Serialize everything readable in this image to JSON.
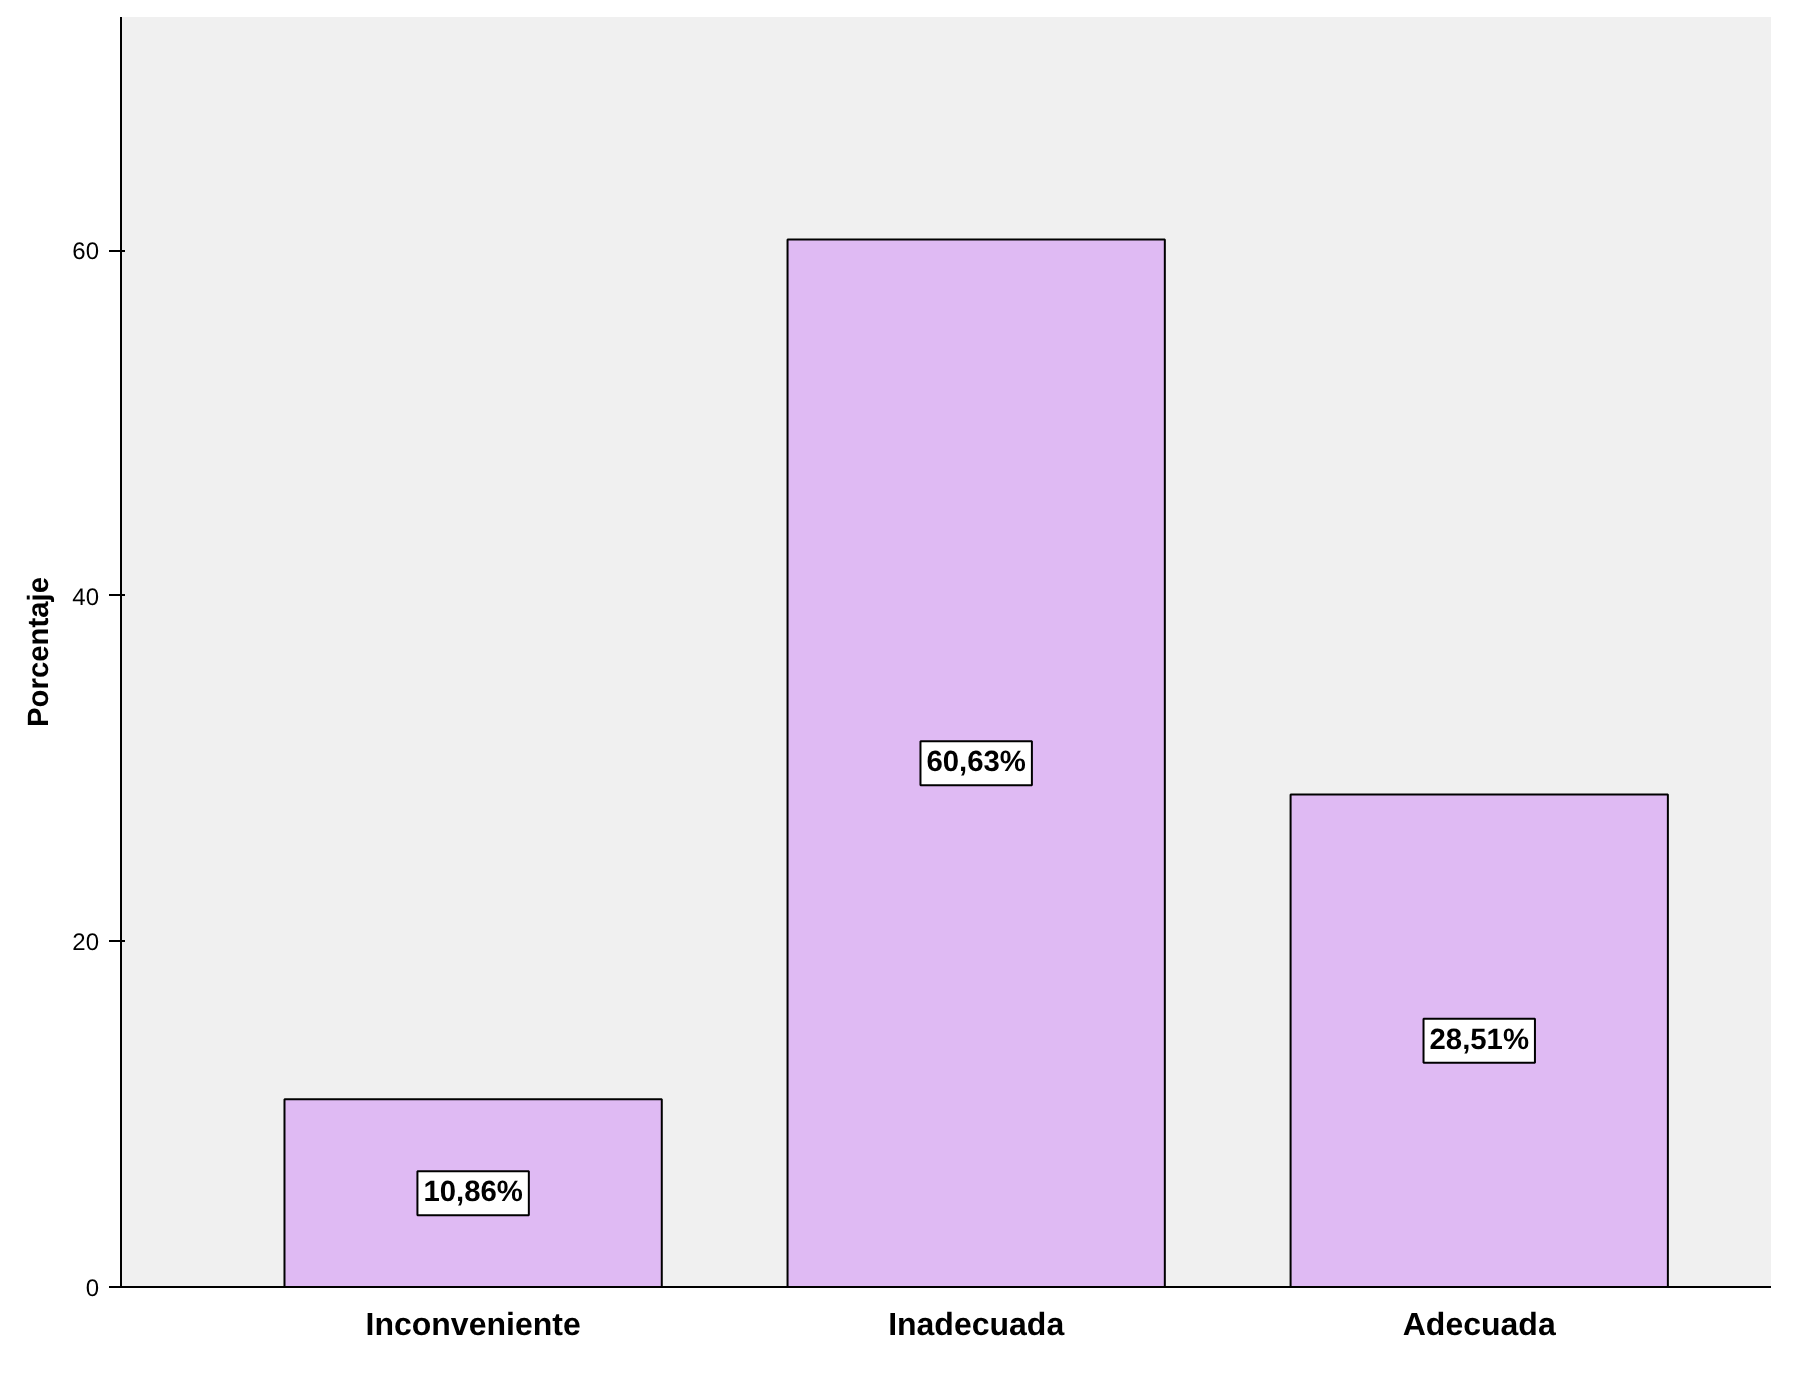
{
  "chart_data": {
    "type": "bar",
    "ylabel": "Porcentaje",
    "categories": [
      "Inconveniente",
      "Inadecuada",
      "Adecuada"
    ],
    "values": [
      10.86,
      60.63,
      28.51
    ],
    "value_labels": [
      "10,86%",
      "60,63%",
      "28,51%"
    ],
    "color": "#dfbaf3",
    "ylim": [
      0,
      73.5
    ],
    "yticks": [
      0,
      20,
      40,
      60
    ],
    "grid": false
  }
}
